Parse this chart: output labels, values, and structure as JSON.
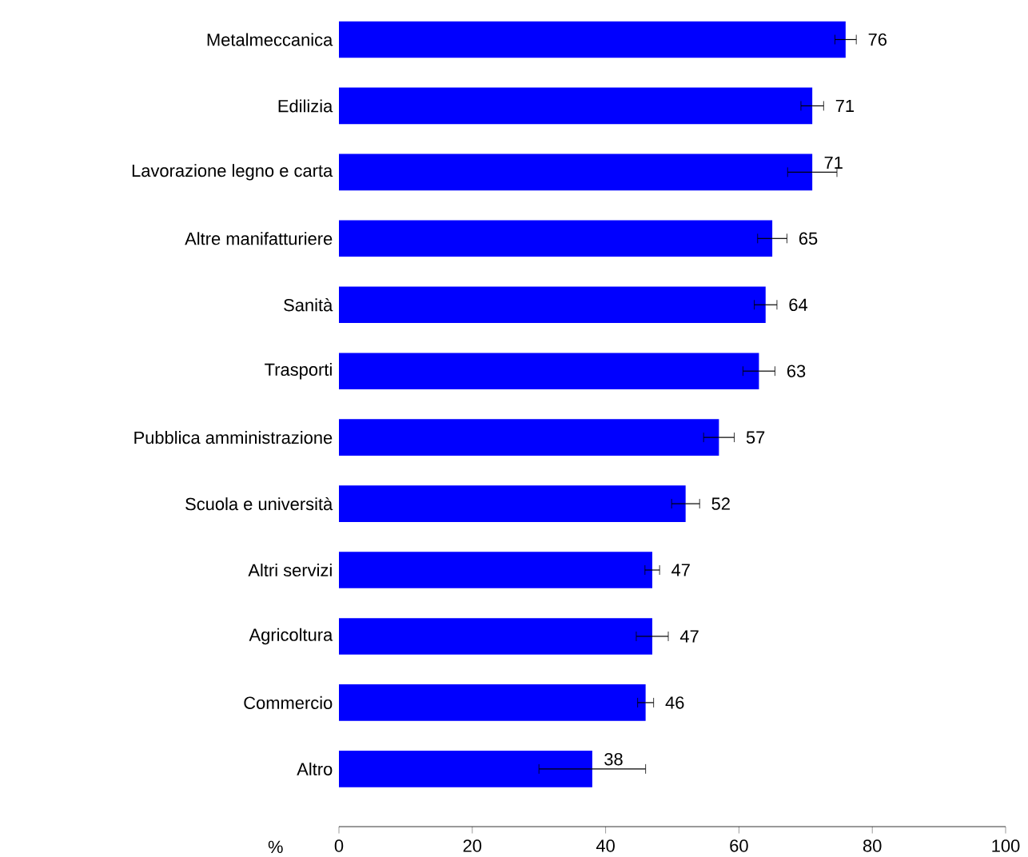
{
  "chart_data": {
    "type": "bar",
    "orientation": "horizontal",
    "xlabel": "%",
    "categories": [
      "Metalmeccanica",
      "Edilizia",
      "Lavorazione legno e carta",
      "Altre manifatturiere",
      "Sanità",
      "Trasporti",
      "Pubblica amministrazione",
      "Scuola e università",
      "Altri servizi",
      "Agricoltura",
      "Commercio",
      "Altro"
    ],
    "values": [
      76,
      71,
      71,
      65,
      64,
      63,
      57,
      52,
      47,
      47,
      46,
      38
    ],
    "errors": [
      1.6,
      1.7,
      3.7,
      2.2,
      1.7,
      2.4,
      2.3,
      2.1,
      1.1,
      2.4,
      1.2,
      8
    ],
    "color": "#0000ff",
    "xlim": [
      0,
      100
    ],
    "xticks": [
      0,
      20,
      40,
      60,
      80,
      100
    ],
    "data_labels": true
  }
}
